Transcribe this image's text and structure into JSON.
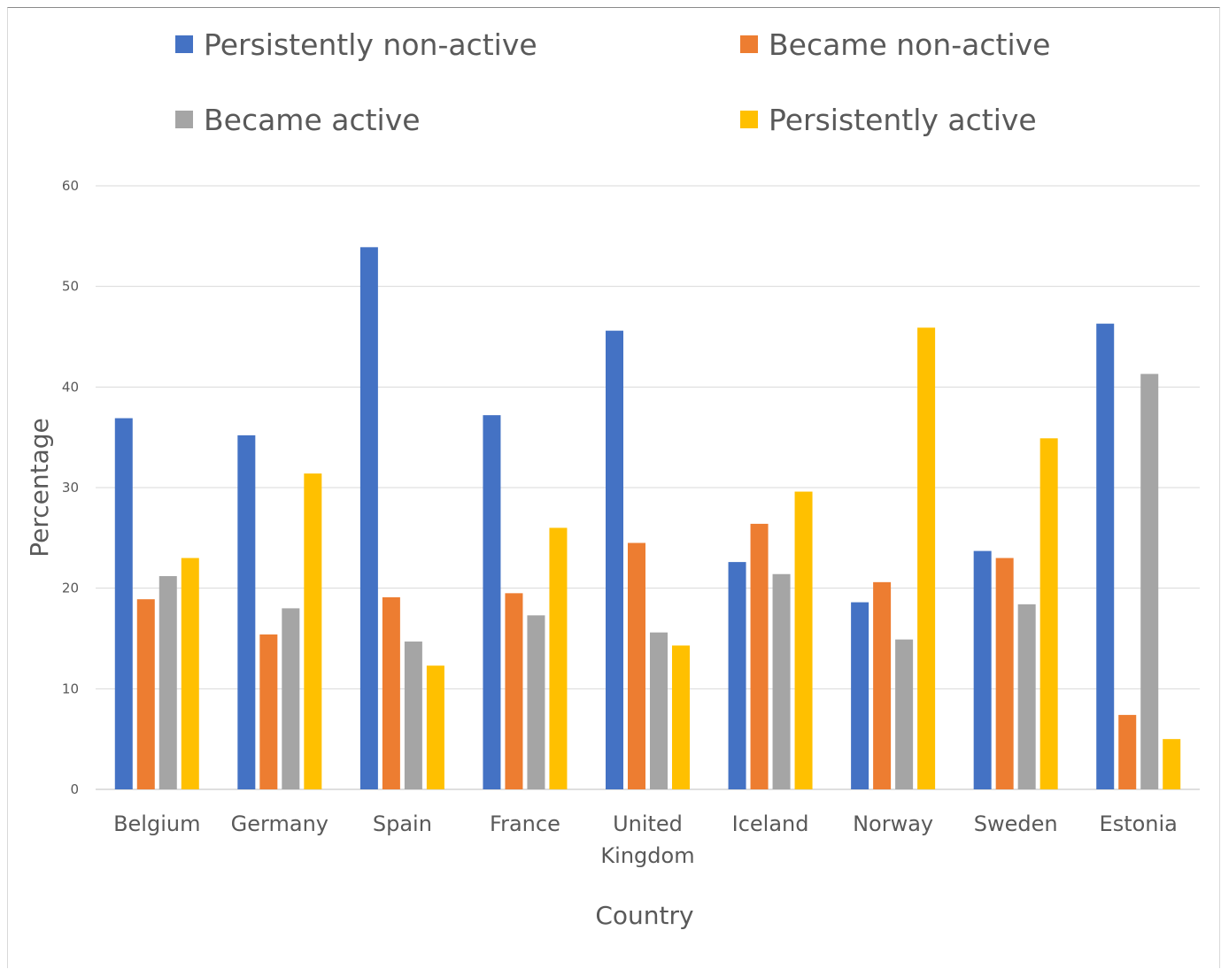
{
  "chart_data": {
    "type": "bar",
    "xlabel": "Country",
    "ylabel": "Percentage",
    "ylim": [
      0,
      60
    ],
    "yticks": [
      0,
      10,
      20,
      30,
      40,
      50,
      60
    ],
    "grid": true,
    "legend_position": "top",
    "categories": [
      [
        "Belgium"
      ],
      [
        "Germany"
      ],
      [
        "Spain"
      ],
      [
        "France"
      ],
      [
        "United",
        "Kingdom"
      ],
      [
        "Iceland"
      ],
      [
        "Norway"
      ],
      [
        "Sweden"
      ],
      [
        "Estonia"
      ]
    ],
    "series": [
      {
        "name": "Persistently non-active",
        "color": "#4472c4",
        "values": [
          36.9,
          35.2,
          53.9,
          37.2,
          45.6,
          22.6,
          18.6,
          23.7,
          46.3
        ]
      },
      {
        "name": "Became non-active",
        "color": "#ed7d31",
        "values": [
          18.9,
          15.4,
          19.1,
          19.5,
          24.5,
          26.4,
          20.6,
          23.0,
          7.4
        ]
      },
      {
        "name": "Became active",
        "color": "#a5a5a5",
        "values": [
          21.2,
          18.0,
          14.7,
          17.3,
          15.6,
          21.4,
          14.9,
          18.4,
          41.3
        ]
      },
      {
        "name": "Persistently active",
        "color": "#ffc000",
        "values": [
          23.0,
          31.4,
          12.3,
          26.0,
          14.3,
          29.6,
          45.9,
          34.9,
          5.0
        ]
      }
    ]
  }
}
